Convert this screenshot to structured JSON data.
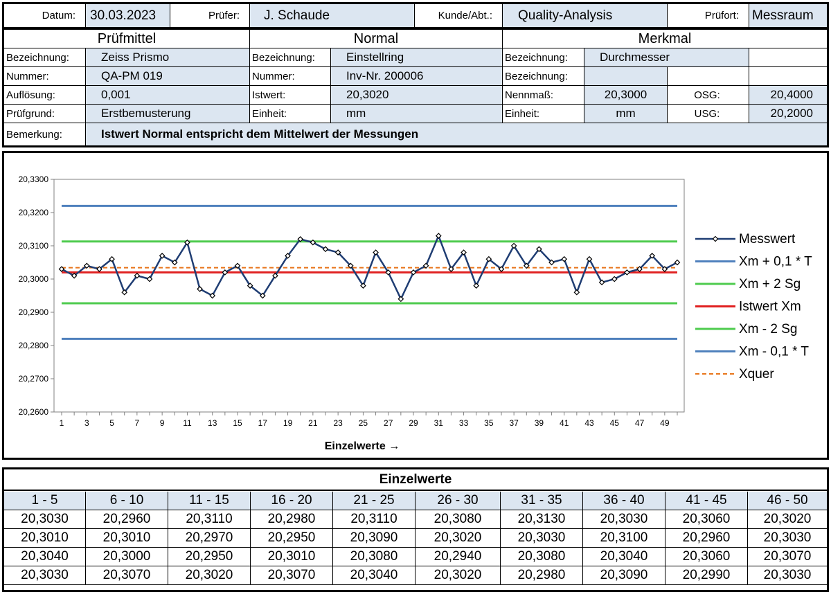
{
  "header": {
    "datum_label": "Datum:",
    "datum_value": "30.03.2023",
    "pruefer_label": "Prüfer:",
    "pruefer_value": "J. Schaude",
    "kunde_label": "Kunde/Abt.:",
    "kunde_value": "Quality-Analysis",
    "pruefort_label": "Prüfort:",
    "pruefort_value": "Messraum"
  },
  "pruefmittel": {
    "title": "Prüfmittel",
    "rows": [
      {
        "label": "Bezeichnung:",
        "value": "Zeiss Prismo"
      },
      {
        "label": "Nummer:",
        "value": "QA-PM 019"
      },
      {
        "label": "Auflösung:",
        "value": "0,001"
      },
      {
        "label": "Prüfgrund:",
        "value": "Erstbemusterung"
      }
    ]
  },
  "normal": {
    "title": "Normal",
    "rows": [
      {
        "label": "Bezeichnung:",
        "value": "Einstellring"
      },
      {
        "label": "Nummer:",
        "value": "Inv-Nr. 200006"
      },
      {
        "label": "Istwert:",
        "value": "20,3020"
      },
      {
        "label": "Einheit:",
        "value": "mm"
      }
    ]
  },
  "merkmal": {
    "title": "Merkmal",
    "bezeichnung_label": "Bezeichnung:",
    "bezeichnung_value": "Durchmesser",
    "bezeichnung2_label": "Bezeichnung:",
    "nennmass_label": "Nennmaß:",
    "nennmass_value": "20,3000",
    "osg_label": "OSG:",
    "osg_value": "20,4000",
    "einheit_label": "Einheit:",
    "einheit_value": "mm",
    "usg_label": "USG:",
    "usg_value": "20,2000"
  },
  "bemerkung": {
    "label": "Bemerkung:",
    "value": "Istwert Normal entspricht dem Mittelwert der Messungen"
  },
  "chart_data": {
    "type": "line",
    "xlabel": "Einzelwerte →",
    "ylabel": "",
    "ylim": [
      20.26,
      20.33
    ],
    "ytick_step": 0.01,
    "yticks": [
      "20,2600",
      "20,2700",
      "20,2800",
      "20,2900",
      "20,3000",
      "20,3100",
      "20,3200",
      "20,3300"
    ],
    "xlim": [
      1,
      50
    ],
    "xticks": [
      1,
      3,
      5,
      7,
      9,
      11,
      13,
      15,
      17,
      19,
      21,
      23,
      25,
      27,
      29,
      31,
      33,
      35,
      37,
      39,
      41,
      43,
      45,
      47,
      49
    ],
    "grid": false,
    "legend_position": "right",
    "series": [
      {
        "name": "Messwert",
        "color": "#1f3d73",
        "marker": "diamond",
        "values": [
          20.303,
          20.301,
          20.304,
          20.303,
          20.306,
          20.296,
          20.301,
          20.3,
          20.307,
          20.305,
          20.311,
          20.297,
          20.295,
          20.302,
          20.304,
          20.298,
          20.295,
          20.301,
          20.307,
          20.312,
          20.311,
          20.309,
          20.308,
          20.304,
          20.298,
          20.308,
          20.302,
          20.294,
          20.302,
          20.304,
          20.313,
          20.303,
          20.308,
          20.298,
          20.306,
          20.303,
          20.31,
          20.304,
          20.309,
          20.305,
          20.306,
          20.296,
          20.306,
          20.299,
          20.3,
          20.302,
          20.303,
          20.307,
          20.303,
          20.305
        ]
      },
      {
        "name": "Xm + 0,1 * T",
        "color": "#4f81bd",
        "constant": 20.322
      },
      {
        "name": "Xm + 2 Sg",
        "color": "#4ecb4e",
        "constant": 20.3113
      },
      {
        "name": "Istwert Xm",
        "color": "#e02020",
        "constant": 20.302
      },
      {
        "name": "Xm - 2 Sg",
        "color": "#4ecb4e",
        "constant": 20.2927
      },
      {
        "name": "Xm - 0,1 * T",
        "color": "#4f81bd",
        "constant": 20.282
      },
      {
        "name": "Xquer",
        "color": "#e8751a",
        "dashed": true,
        "constant": 20.3034
      }
    ]
  },
  "einzelwerte": {
    "title": "Einzelwerte",
    "columns": [
      "1 - 5",
      "6 - 10",
      "11 - 15",
      "16 - 20",
      "21 - 25",
      "26 - 30",
      "31 - 35",
      "36 - 40",
      "41 - 45",
      "46 - 50"
    ],
    "rows": [
      [
        "20,3030",
        "20,2960",
        "20,3110",
        "20,2980",
        "20,3110",
        "20,3080",
        "20,3130",
        "20,3030",
        "20,3060",
        "20,3020"
      ],
      [
        "20,3010",
        "20,3010",
        "20,2970",
        "20,2950",
        "20,3090",
        "20,3020",
        "20,3030",
        "20,3100",
        "20,2960",
        "20,3030"
      ],
      [
        "20,3040",
        "20,3000",
        "20,2950",
        "20,3010",
        "20,3080",
        "20,2940",
        "20,3080",
        "20,3040",
        "20,3060",
        "20,3070"
      ],
      [
        "20,3030",
        "20,3070",
        "20,3020",
        "20,3070",
        "20,3040",
        "20,3020",
        "20,2980",
        "20,3090",
        "20,2990",
        "20,3030"
      ]
    ]
  }
}
